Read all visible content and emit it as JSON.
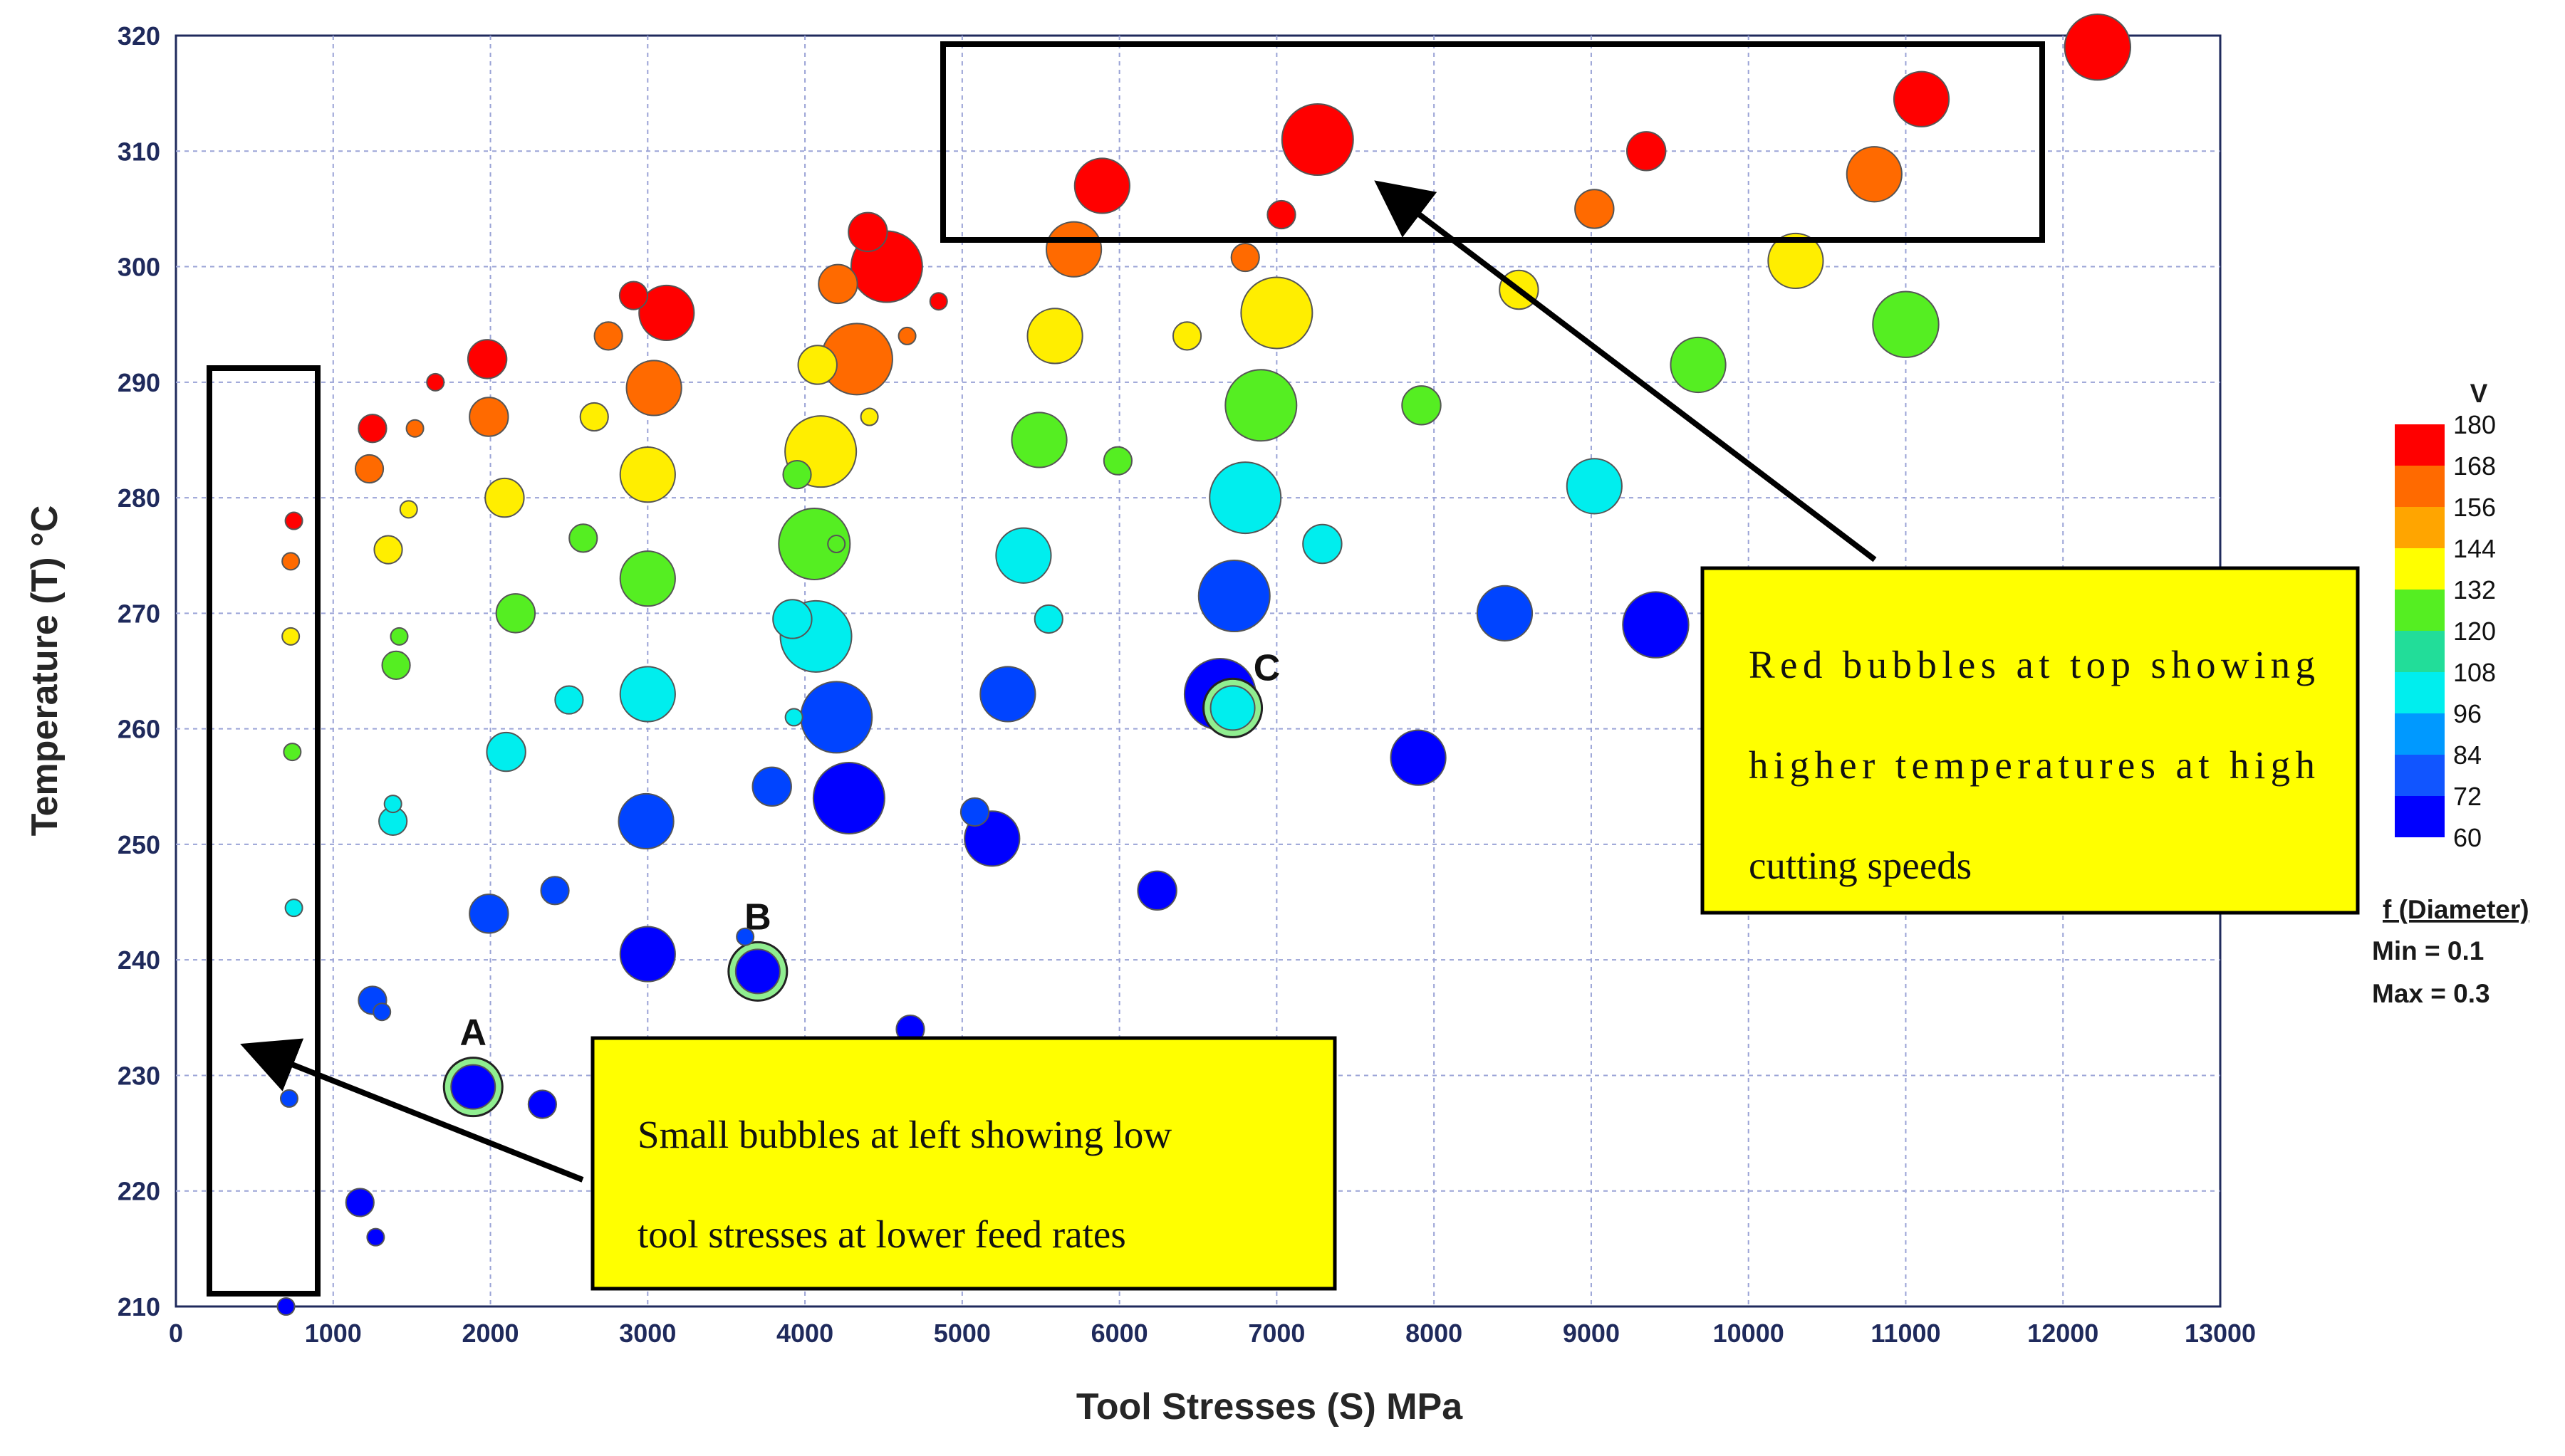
{
  "chart_data": {
    "type": "scatter",
    "subtype": "bubble",
    "title": "",
    "xlabel": "Tool Stresses (S) MPa",
    "ylabel": "Temperature (T) °C",
    "xlim": [
      0,
      13000
    ],
    "ylim": [
      210,
      320
    ],
    "xticks": [
      0,
      1000,
      2000,
      3000,
      4000,
      5000,
      6000,
      7000,
      8000,
      9000,
      10000,
      11000,
      12000,
      13000
    ],
    "yticks": [
      210,
      220,
      230,
      240,
      250,
      260,
      270,
      280,
      290,
      300,
      310,
      320
    ],
    "grid": true,
    "color_variable": "V",
    "size_variable": "f (Diameter)",
    "colorbar": {
      "title": "V",
      "ticks": [
        180,
        168,
        156,
        144,
        132,
        120,
        108,
        96,
        84,
        72,
        60
      ],
      "colors": [
        "#ff0000",
        "#ff6a00",
        "#ffa500",
        "#ffff00",
        "#55ee22",
        "#22dd99",
        "#00eeee",
        "#0099ff",
        "#1155ff",
        "#0000ff"
      ]
    },
    "size_legend": {
      "title": "f (Diameter)",
      "min_label": "Min = 0.1",
      "max_label": "Max = 0.3"
    },
    "points": [
      {
        "x": 750,
        "y": 278,
        "v": 180,
        "f": 0.1
      },
      {
        "x": 730,
        "y": 274.5,
        "v": 168,
        "f": 0.1
      },
      {
        "x": 730,
        "y": 268,
        "v": 144,
        "f": 0.1
      },
      {
        "x": 740,
        "y": 258,
        "v": 120,
        "f": 0.1
      },
      {
        "x": 750,
        "y": 244.5,
        "v": 96,
        "f": 0.1
      },
      {
        "x": 720,
        "y": 228,
        "v": 72,
        "f": 0.1
      },
      {
        "x": 700,
        "y": 210,
        "v": 60,
        "f": 0.1
      },
      {
        "x": 1250,
        "y": 286,
        "v": 180,
        "f": 0.14
      },
      {
        "x": 1230,
        "y": 282.5,
        "v": 168,
        "f": 0.14
      },
      {
        "x": 1350,
        "y": 275.5,
        "v": 144,
        "f": 0.14
      },
      {
        "x": 1400,
        "y": 265.5,
        "v": 120,
        "f": 0.14
      },
      {
        "x": 1380,
        "y": 252,
        "v": 96,
        "f": 0.14
      },
      {
        "x": 1250,
        "y": 236.5,
        "v": 72,
        "f": 0.14
      },
      {
        "x": 1170,
        "y": 219,
        "v": 60,
        "f": 0.14
      },
      {
        "x": 1650,
        "y": 290,
        "v": 180,
        "f": 0.1
      },
      {
        "x": 1520,
        "y": 286,
        "v": 168,
        "f": 0.1
      },
      {
        "x": 1480,
        "y": 279,
        "v": 144,
        "f": 0.1
      },
      {
        "x": 1420,
        "y": 268,
        "v": 120,
        "f": 0.1
      },
      {
        "x": 1380,
        "y": 253.5,
        "v": 96,
        "f": 0.1
      },
      {
        "x": 1310,
        "y": 235.5,
        "v": 72,
        "f": 0.1
      },
      {
        "x": 1270,
        "y": 216,
        "v": 60,
        "f": 0.1
      },
      {
        "x": 1980,
        "y": 292,
        "v": 180,
        "f": 0.18
      },
      {
        "x": 1990,
        "y": 287,
        "v": 168,
        "f": 0.18
      },
      {
        "x": 2090,
        "y": 280,
        "v": 144,
        "f": 0.18
      },
      {
        "x": 2160,
        "y": 270,
        "v": 120,
        "f": 0.18
      },
      {
        "x": 2100,
        "y": 258,
        "v": 96,
        "f": 0.18
      },
      {
        "x": 1990,
        "y": 244,
        "v": 72,
        "f": 0.18
      },
      {
        "x": 1890,
        "y": 229,
        "v": 60,
        "f": 0.2,
        "highlight": true,
        "label": "A"
      },
      {
        "x": 2910,
        "y": 297.5,
        "v": 180,
        "f": 0.14
      },
      {
        "x": 2750,
        "y": 294,
        "v": 168,
        "f": 0.14
      },
      {
        "x": 2660,
        "y": 287,
        "v": 144,
        "f": 0.14
      },
      {
        "x": 2590,
        "y": 276.5,
        "v": 120,
        "f": 0.14
      },
      {
        "x": 2500,
        "y": 262.5,
        "v": 96,
        "f": 0.14
      },
      {
        "x": 2410,
        "y": 246,
        "v": 72,
        "f": 0.14
      },
      {
        "x": 2330,
        "y": 227.5,
        "v": 60,
        "f": 0.14
      },
      {
        "x": 3120,
        "y": 296,
        "v": 180,
        "f": 0.24
      },
      {
        "x": 3040,
        "y": 289.5,
        "v": 168,
        "f": 0.24
      },
      {
        "x": 3000,
        "y": 282,
        "v": 144,
        "f": 0.24
      },
      {
        "x": 3000,
        "y": 273,
        "v": 120,
        "f": 0.24
      },
      {
        "x": 3000,
        "y": 263,
        "v": 96,
        "f": 0.24
      },
      {
        "x": 2990,
        "y": 252,
        "v": 72,
        "f": 0.24
      },
      {
        "x": 3000,
        "y": 240.5,
        "v": 60,
        "f": 0.24
      },
      {
        "x": 4400,
        "y": 303,
        "v": 180,
        "f": 0.18
      },
      {
        "x": 4210,
        "y": 298.5,
        "v": 168,
        "f": 0.18
      },
      {
        "x": 4080,
        "y": 291.5,
        "v": 144,
        "f": 0.18
      },
      {
        "x": 3950,
        "y": 282,
        "v": 120,
        "f": 0.14
      },
      {
        "x": 3920,
        "y": 269.5,
        "v": 96,
        "f": 0.18
      },
      {
        "x": 3790,
        "y": 255,
        "v": 72,
        "f": 0.18
      },
      {
        "x": 3700,
        "y": 239,
        "v": 60,
        "f": 0.2,
        "highlight": true,
        "label": "B"
      },
      {
        "x": 4520,
        "y": 300,
        "v": 180,
        "f": 0.3
      },
      {
        "x": 4330,
        "y": 292,
        "v": 168,
        "f": 0.3
      },
      {
        "x": 4100,
        "y": 284,
        "v": 144,
        "f": 0.3
      },
      {
        "x": 4060,
        "y": 276,
        "v": 120,
        "f": 0.3
      },
      {
        "x": 4070,
        "y": 268,
        "v": 96,
        "f": 0.3
      },
      {
        "x": 4200,
        "y": 261,
        "v": 72,
        "f": 0.3
      },
      {
        "x": 4280,
        "y": 254,
        "v": 60,
        "f": 0.3
      },
      {
        "x": 4850,
        "y": 297,
        "v": 180,
        "f": 0.1
      },
      {
        "x": 4650,
        "y": 294,
        "v": 168,
        "f": 0.1
      },
      {
        "x": 4410,
        "y": 287,
        "v": 144,
        "f": 0.1
      },
      {
        "x": 4200,
        "y": 276,
        "v": 120,
        "f": 0.1
      },
      {
        "x": 3930,
        "y": 261,
        "v": 96,
        "f": 0.1
      },
      {
        "x": 3620,
        "y": 242,
        "v": 72,
        "f": 0.1
      },
      {
        "x": 4670,
        "y": 234,
        "v": 60,
        "f": 0.14
      },
      {
        "x": 5890,
        "y": 307,
        "v": 180,
        "f": 0.24
      },
      {
        "x": 5710,
        "y": 301.5,
        "v": 168,
        "f": 0.24
      },
      {
        "x": 5590,
        "y": 294,
        "v": 144,
        "f": 0.24
      },
      {
        "x": 5490,
        "y": 285,
        "v": 120,
        "f": 0.24
      },
      {
        "x": 5390,
        "y": 275,
        "v": 96,
        "f": 0.24
      },
      {
        "x": 5290,
        "y": 263,
        "v": 72,
        "f": 0.24
      },
      {
        "x": 5190,
        "y": 250.5,
        "v": 60,
        "f": 0.24
      },
      {
        "x": 7030,
        "y": 304.5,
        "v": 180,
        "f": 0.14
      },
      {
        "x": 6800,
        "y": 300.8,
        "v": 168,
        "f": 0.14
      },
      {
        "x": 6430,
        "y": 294,
        "v": 144,
        "f": 0.14
      },
      {
        "x": 5990,
        "y": 283.2,
        "v": 120,
        "f": 0.14
      },
      {
        "x": 5550,
        "y": 269.5,
        "v": 96,
        "f": 0.14
      },
      {
        "x": 5080,
        "y": 252.8,
        "v": 72,
        "f": 0.14
      },
      {
        "x": 6240,
        "y": 246,
        "v": 60,
        "f": 0.18
      },
      {
        "x": 7260,
        "y": 311,
        "v": 180,
        "f": 0.3
      },
      {
        "x": 7000,
        "y": 296,
        "v": 144,
        "f": 0.3
      },
      {
        "x": 6900,
        "y": 288,
        "v": 120,
        "f": 0.3
      },
      {
        "x": 6800,
        "y": 280,
        "v": 96,
        "f": 0.3
      },
      {
        "x": 6730,
        "y": 271.5,
        "v": 72,
        "f": 0.3
      },
      {
        "x": 6640,
        "y": 263,
        "v": 60,
        "f": 0.3
      },
      {
        "x": 6720,
        "y": 261.8,
        "v": 96,
        "f": 0.2,
        "highlight": true,
        "label": "C"
      },
      {
        "x": 7290,
        "y": 276,
        "v": 96,
        "f": 0.18
      },
      {
        "x": 7920,
        "y": 288,
        "v": 120,
        "f": 0.18
      },
      {
        "x": 7900,
        "y": 257.5,
        "v": 60,
        "f": 0.24
      },
      {
        "x": 8450,
        "y": 270,
        "v": 72,
        "f": 0.24
      },
      {
        "x": 8540,
        "y": 298,
        "v": 144,
        "f": 0.18
      },
      {
        "x": 9020,
        "y": 305,
        "v": 168,
        "f": 0.18
      },
      {
        "x": 9350,
        "y": 310,
        "v": 180,
        "f": 0.18
      },
      {
        "x": 9020,
        "y": 281,
        "v": 96,
        "f": 0.24
      },
      {
        "x": 9410,
        "y": 269,
        "v": 60,
        "f": 0.28
      },
      {
        "x": 9680,
        "y": 291.5,
        "v": 120,
        "f": 0.24
      },
      {
        "x": 10300,
        "y": 300.5,
        "v": 144,
        "f": 0.24
      },
      {
        "x": 10800,
        "y": 308,
        "v": 168,
        "f": 0.24
      },
      {
        "x": 11100,
        "y": 314.5,
        "v": 180,
        "f": 0.24
      },
      {
        "x": 11000,
        "y": 295,
        "v": 120,
        "f": 0.28
      },
      {
        "x": 12220,
        "y": 319,
        "v": 180,
        "f": 0.28
      }
    ],
    "annotations": {
      "box_left_label": "Small bubbles at left showing low tool stresses at lower feed rates",
      "box_top_label": "Red bubbles at top showing higher temperatures at high cutting speeds"
    }
  },
  "callouts": {
    "left_line1": "Small bubbles at left showing low",
    "left_line2": "tool stresses at lower feed rates",
    "right_line1": "Red bubbles at top showing",
    "right_line2": "higher temperatures at high",
    "right_line3": "cutting speeds"
  },
  "legend": {
    "v_title": "V",
    "size_title": "f (Diameter)",
    "size_min": "Min = 0.1",
    "size_max": "Max = 0.3"
  }
}
